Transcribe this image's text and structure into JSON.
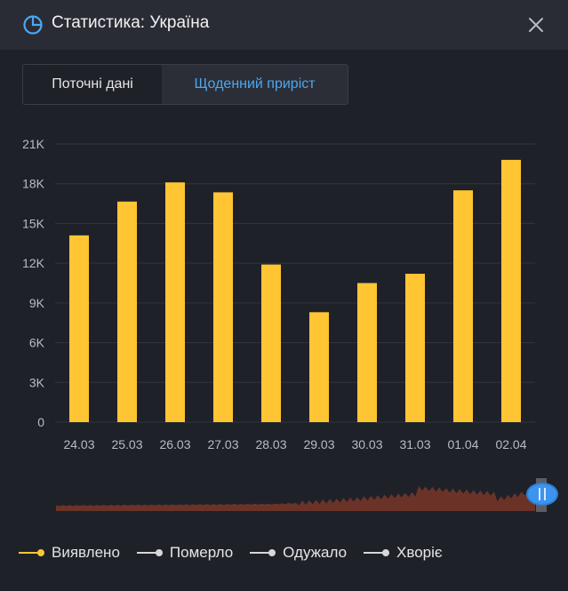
{
  "header": {
    "title": "Статистика: Україна",
    "icon": "pie-chart-icon",
    "close_icon": "close-icon"
  },
  "tabs": [
    {
      "label": "Поточні дані",
      "active": false
    },
    {
      "label": "Щоденний приріст",
      "active": true
    }
  ],
  "colors": {
    "bar": "#ffc533",
    "accent": "#4aa8f0",
    "minimap": "#6b3328",
    "grid": "#33353f",
    "tick": "#b9bcc6"
  },
  "chart_data": {
    "type": "bar",
    "categories": [
      "24.03",
      "25.03",
      "26.03",
      "27.03",
      "28.03",
      "29.03",
      "30.03",
      "31.03",
      "01.04",
      "02.04"
    ],
    "series": [
      {
        "name": "Виявлено",
        "values": [
          14100,
          16650,
          18100,
          17350,
          11900,
          8300,
          10500,
          11200,
          17500,
          19800
        ]
      }
    ],
    "ylim": [
      0,
      21000
    ],
    "yticks": [
      0,
      3000,
      6000,
      9000,
      12000,
      15000,
      18000,
      21000
    ],
    "ytick_labels": [
      "0",
      "3K",
      "6K",
      "9K",
      "12K",
      "15K",
      "18K",
      "21K"
    ],
    "grid": true,
    "legend_position": "bottom-left"
  },
  "legend": [
    {
      "label": "Виявлено",
      "color": "#ffc533",
      "active": true
    },
    {
      "label": "Померло",
      "color": "#d7d7d7",
      "active": false
    },
    {
      "label": "Одужало",
      "color": "#d7d7d7",
      "active": false
    },
    {
      "label": "Хворіє",
      "color": "#d7d7d7",
      "active": false
    }
  ]
}
